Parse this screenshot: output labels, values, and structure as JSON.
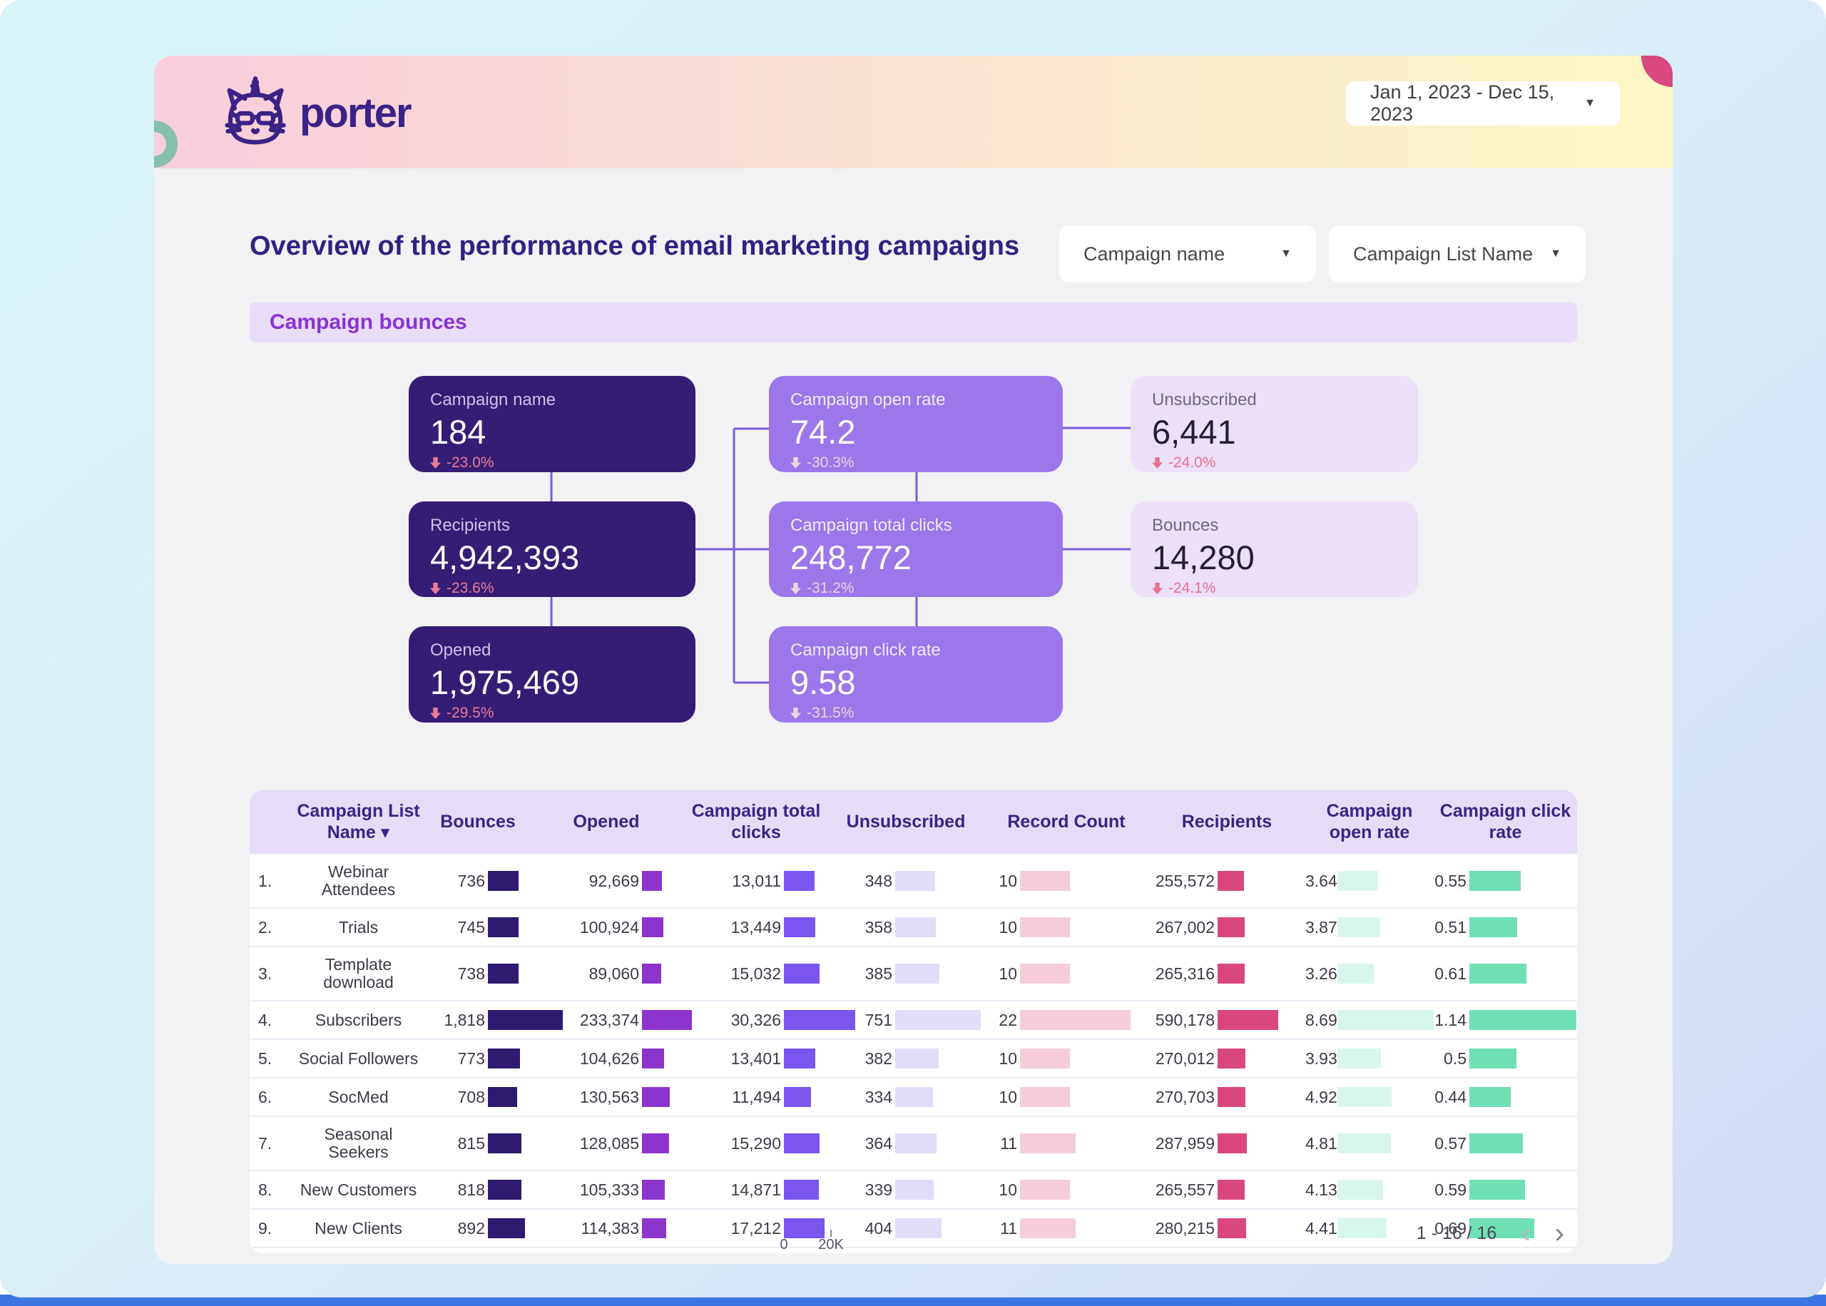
{
  "header": {
    "logo_text": "porter",
    "date_range": "Jan 1, 2023 - Dec 15, 2023"
  },
  "filters": {
    "campaign_name_label": "Campaign name",
    "campaign_list_label": "Campaign List Name"
  },
  "main": {
    "title": "Overview of the performance of email marketing campaigns",
    "section_title": "Campaign bounces"
  },
  "kpis": [
    {
      "id": "campaign-name",
      "label": "Campaign name",
      "value": "184",
      "delta": "-23.0%",
      "style": "dark",
      "col": 0,
      "row": 0
    },
    {
      "id": "recipients",
      "label": "Recipients",
      "value": "4,942,393",
      "delta": "-23.6%",
      "style": "dark",
      "col": 0,
      "row": 1
    },
    {
      "id": "opened",
      "label": "Opened",
      "value": "1,975,469",
      "delta": "-29.5%",
      "style": "dark",
      "col": 0,
      "row": 2
    },
    {
      "id": "campaign-open-rate",
      "label": "Campaign open rate",
      "value": "74.2",
      "delta": "-30.3%",
      "style": "mid",
      "col": 1,
      "row": 0
    },
    {
      "id": "campaign-total-clicks",
      "label": "Campaign total clicks",
      "value": "248,772",
      "delta": "-31.2%",
      "style": "mid",
      "col": 1,
      "row": 1
    },
    {
      "id": "campaign-click-rate",
      "label": "Campaign click rate",
      "value": "9.58",
      "delta": "-31.5%",
      "style": "mid",
      "col": 1,
      "row": 2
    },
    {
      "id": "unsubscribed",
      "label": "Unsubscribed",
      "value": "6,441",
      "delta": "-24.0%",
      "style": "light",
      "col": 2,
      "row": 0
    },
    {
      "id": "bounces",
      "label": "Bounces",
      "value": "14,280",
      "delta": "-24.1%",
      "style": "light",
      "col": 2,
      "row": 1
    }
  ],
  "table": {
    "header": {
      "list_name": "Campaign List Name",
      "sort_caret": "▾",
      "cols": [
        "Bounces",
        "Opened",
        "Campaign total clicks",
        "Unsubscribed",
        "Record Count",
        "Recipients",
        "Campaign open rate",
        "Campaign click rate"
      ]
    },
    "rows": [
      {
        "n": "1.",
        "name": "Webinar Attendees",
        "cells": [
          "736",
          "92,669",
          "13,011",
          "348",
          "10",
          "255,572",
          "3.64",
          "0.55"
        ]
      },
      {
        "n": "2.",
        "name": "Trials",
        "cells": [
          "745",
          "100,924",
          "13,449",
          "358",
          "10",
          "267,002",
          "3.87",
          "0.51"
        ]
      },
      {
        "n": "3.",
        "name": "Template download",
        "cells": [
          "738",
          "89,060",
          "15,032",
          "385",
          "10",
          "265,316",
          "3.26",
          "0.61"
        ]
      },
      {
        "n": "4.",
        "name": "Subscribers",
        "cells": [
          "1,818",
          "233,374",
          "30,326",
          "751",
          "22",
          "590,178",
          "8.69",
          "1.14"
        ]
      },
      {
        "n": "5.",
        "name": "Social Followers",
        "cells": [
          "773",
          "104,626",
          "13,401",
          "382",
          "10",
          "270,012",
          "3.93",
          "0.5"
        ]
      },
      {
        "n": "6.",
        "name": "SocMed",
        "cells": [
          "708",
          "130,563",
          "11,494",
          "334",
          "10",
          "270,703",
          "4.92",
          "0.44"
        ]
      },
      {
        "n": "7.",
        "name": "Seasonal Seekers",
        "cells": [
          "815",
          "128,085",
          "15,290",
          "364",
          "11",
          "287,959",
          "4.81",
          "0.57"
        ]
      },
      {
        "n": "8.",
        "name": "New Customers",
        "cells": [
          "818",
          "105,333",
          "14,871",
          "339",
          "10",
          "265,557",
          "4.13",
          "0.59"
        ]
      },
      {
        "n": "9.",
        "name": "New Clients",
        "cells": [
          "892",
          "114,383",
          "17,212",
          "404",
          "11",
          "280,215",
          "4.41",
          "0.69"
        ]
      }
    ],
    "partial_row_fractions": [
      0.45,
      0.4,
      0.5,
      0.52,
      0.45,
      0.47,
      0.45,
      0.52
    ],
    "axis": {
      "zero_label": "0",
      "max_label": "20K"
    },
    "pagination": {
      "range_label": "1 - 16 / 16"
    }
  },
  "colors": {
    "bar_bounces": "#2e1a6e",
    "bar_opened": "#8c35cc",
    "bar_clicks": "#7a55ee",
    "bar_unsubscribed": "#e3dcf6",
    "bar_record_count": "#f4cdd9",
    "bar_recipients": "#d8487e",
    "bar_open_rate": "#d9f6ec",
    "bar_click_rate": "#6fdfb4",
    "kpi_dark": "#351d75",
    "kpi_mid": "#9b77ea",
    "kpi_light": "#ecdff8",
    "delta_down": "#e8708e",
    "accent_purple": "#8a33d1",
    "connector": "#7a5ae0"
  }
}
